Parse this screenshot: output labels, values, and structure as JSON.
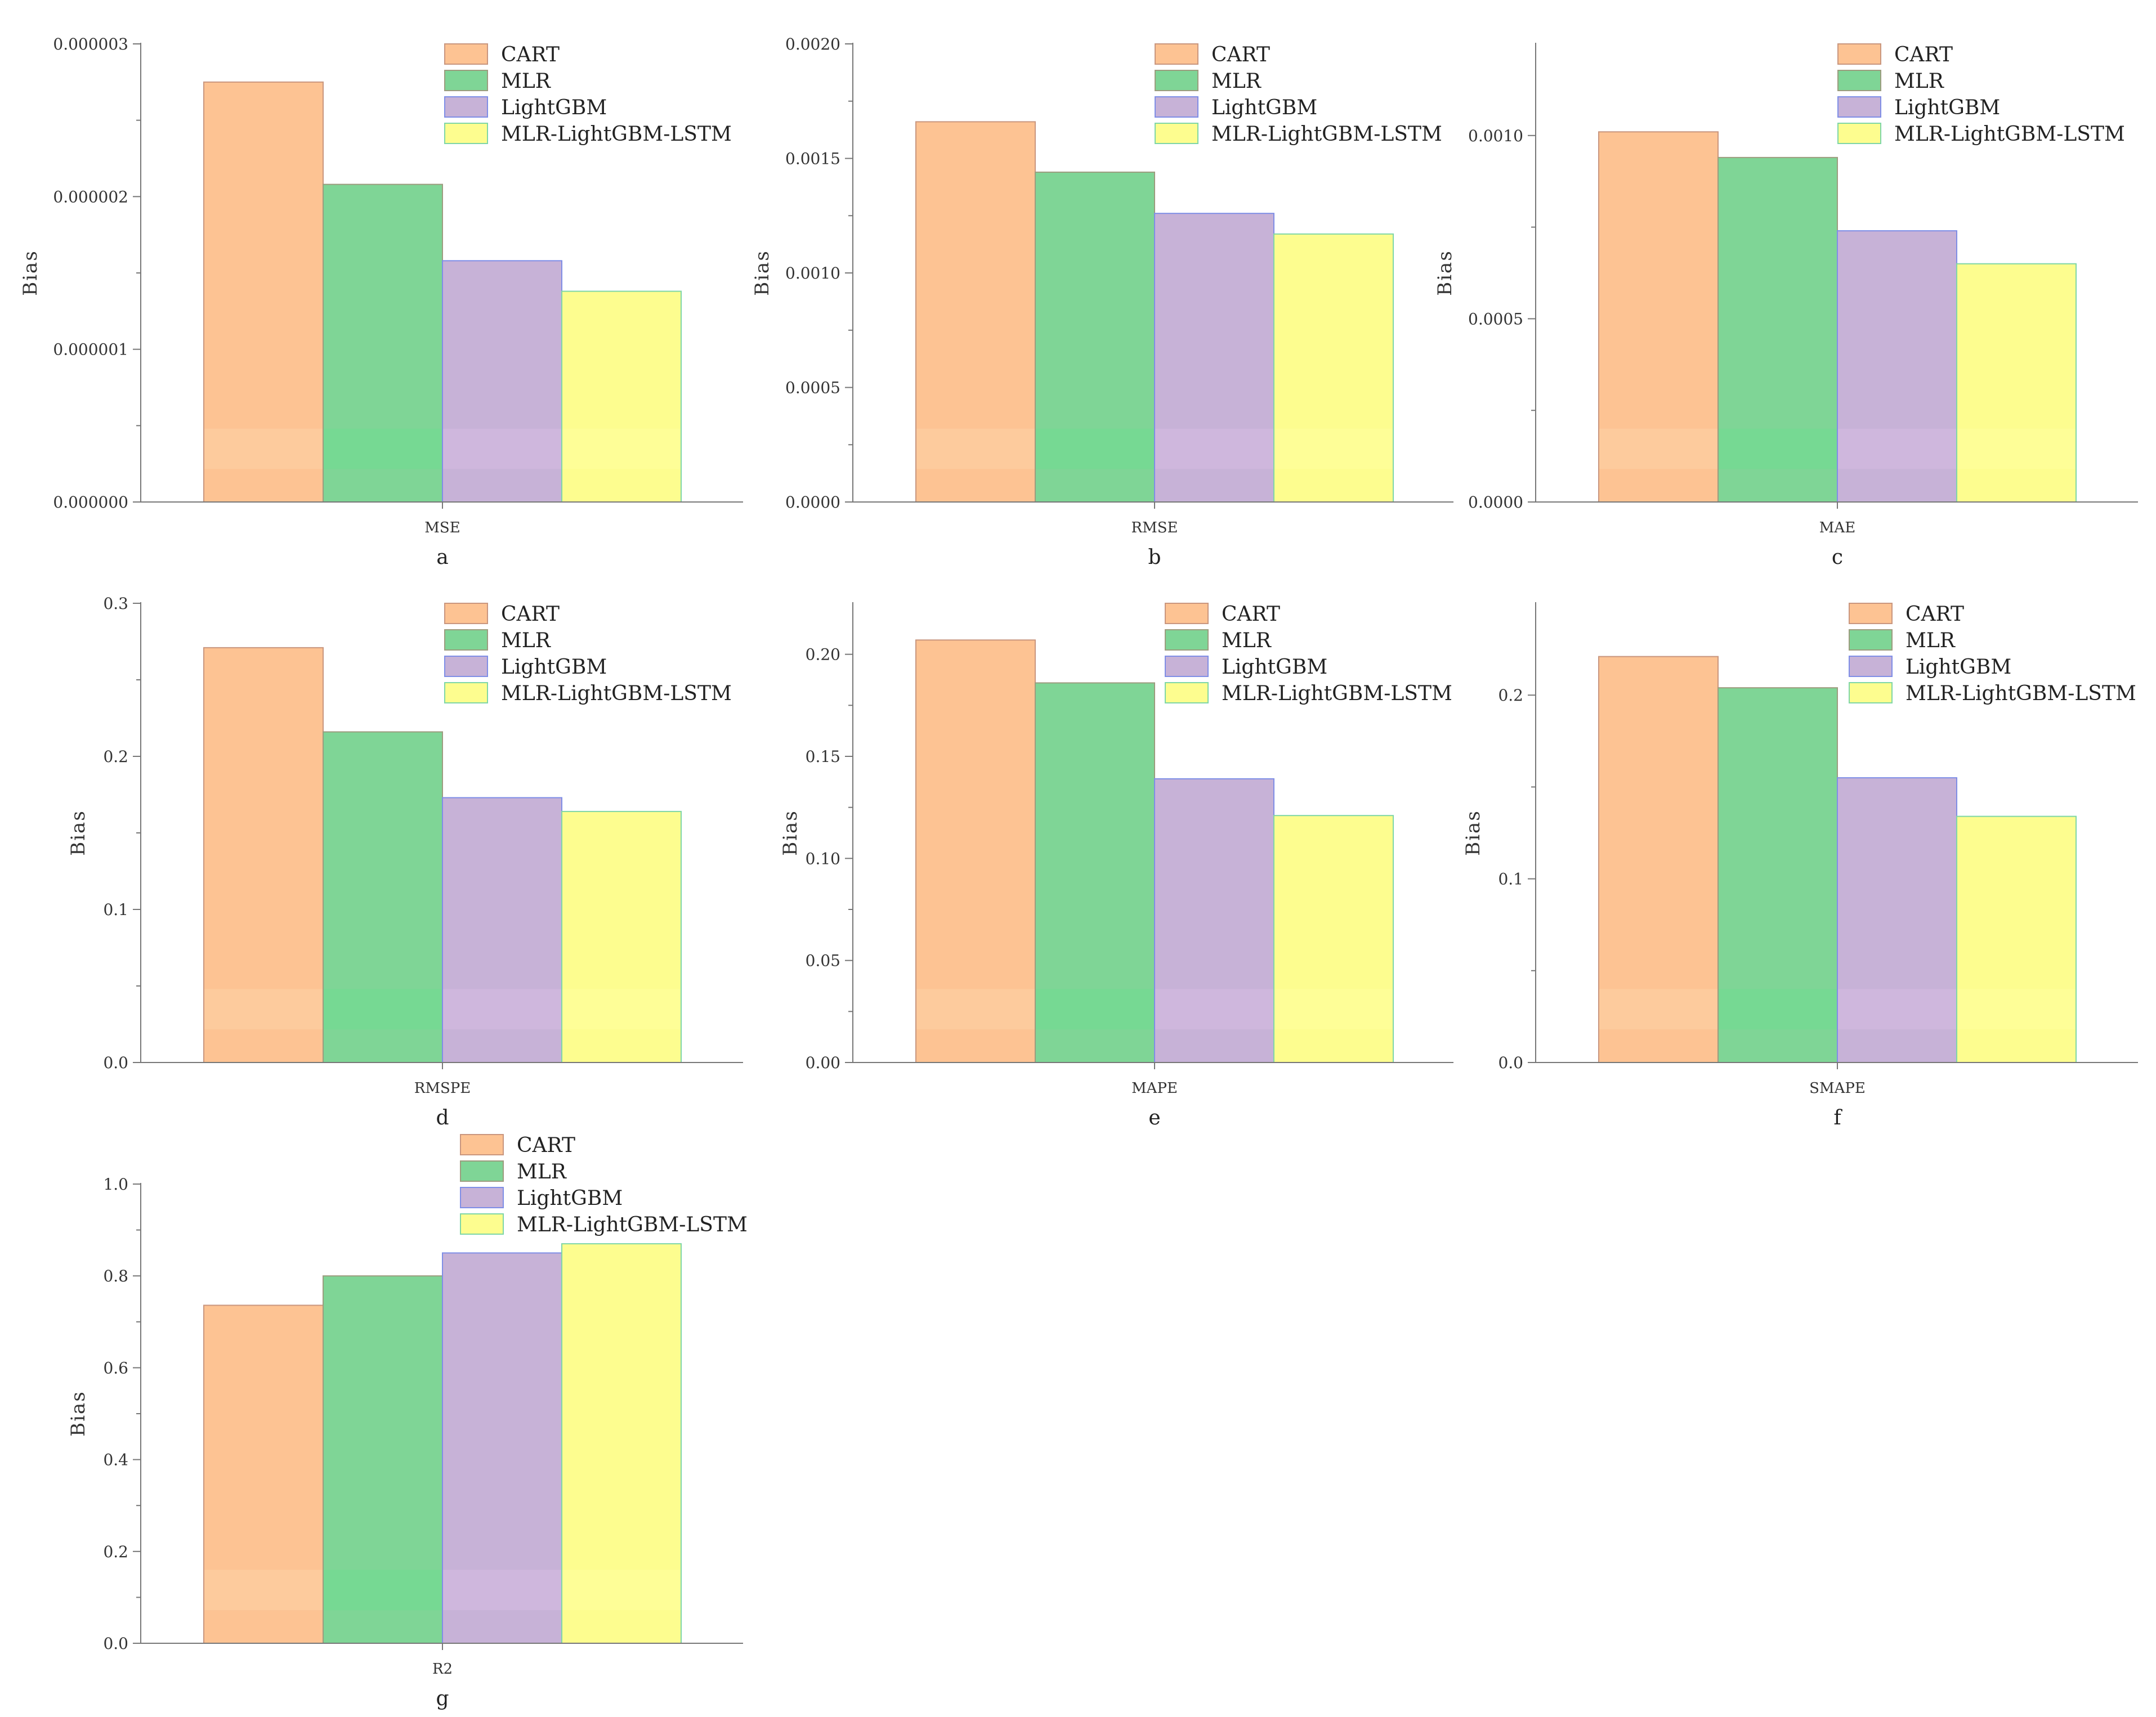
{
  "chart_data": [
    {
      "type": "bar",
      "panel_label": "a",
      "category": "MSE",
      "ylabel": "Bias",
      "yticks": [
        "0.000000",
        "0.000001",
        "0.000002",
        "0.000003"
      ],
      "ylim": [
        0,
        3e-06
      ],
      "series": [
        {
          "name": "CART",
          "value": 2.75e-06
        },
        {
          "name": "MLR",
          "value": 2.08e-06
        },
        {
          "name": "LightGBM",
          "value": 1.58e-06
        },
        {
          "name": "MLR-LightGBM-LSTM",
          "value": 1.38e-06
        }
      ]
    },
    {
      "type": "bar",
      "panel_label": "b",
      "category": "RMSE",
      "ylabel": "Bias",
      "yticks": [
        "0.0000",
        "0.0005",
        "0.0010",
        "0.0015",
        "0.0020"
      ],
      "ylim": [
        0,
        0.002
      ],
      "series": [
        {
          "name": "CART",
          "value": 0.00166
        },
        {
          "name": "MLR",
          "value": 0.00144
        },
        {
          "name": "LightGBM",
          "value": 0.00126
        },
        {
          "name": "MLR-LightGBM-LSTM",
          "value": 0.00117
        }
      ]
    },
    {
      "type": "bar",
      "panel_label": "c",
      "category": "MAE",
      "ylabel": "Bias",
      "yticks": [
        "0.0000",
        "0.0005",
        "0.0010"
      ],
      "ylim": [
        0,
        0.00125
      ],
      "series": [
        {
          "name": "CART",
          "value": 0.00101
        },
        {
          "name": "MLR",
          "value": 0.00094
        },
        {
          "name": "LightGBM",
          "value": 0.00074
        },
        {
          "name": "MLR-LightGBM-LSTM",
          "value": 0.00065
        }
      ]
    },
    {
      "type": "bar",
      "panel_label": "d",
      "category": "RMSPE",
      "ylabel": "Bias",
      "yticks": [
        "0.0",
        "0.1",
        "0.2",
        "0.3"
      ],
      "ylim": [
        0,
        0.3
      ],
      "series": [
        {
          "name": "CART",
          "value": 0.271
        },
        {
          "name": "MLR",
          "value": 0.216
        },
        {
          "name": "LightGBM",
          "value": 0.173
        },
        {
          "name": "MLR-LightGBM-LSTM",
          "value": 0.164
        }
      ]
    },
    {
      "type": "bar",
      "panel_label": "e",
      "category": "MAPE",
      "ylabel": "Bias",
      "yticks": [
        "0.00",
        "0.05",
        "0.10",
        "0.15",
        "0.20"
      ],
      "ylim": [
        0,
        0.225
      ],
      "series": [
        {
          "name": "CART",
          "value": 0.207
        },
        {
          "name": "MLR",
          "value": 0.186
        },
        {
          "name": "LightGBM",
          "value": 0.139
        },
        {
          "name": "MLR-LightGBM-LSTM",
          "value": 0.121
        }
      ]
    },
    {
      "type": "bar",
      "panel_label": "f",
      "category": "SMAPE",
      "ylabel": "Bias",
      "yticks": [
        "0.0",
        "0.1",
        "0.2"
      ],
      "ylim": [
        0,
        0.25
      ],
      "series": [
        {
          "name": "CART",
          "value": 0.221
        },
        {
          "name": "MLR",
          "value": 0.204
        },
        {
          "name": "LightGBM",
          "value": 0.155
        },
        {
          "name": "MLR-LightGBM-LSTM",
          "value": 0.134
        }
      ]
    },
    {
      "type": "bar",
      "panel_label": "g",
      "category": "R2",
      "ylabel": "Bias",
      "yticks": [
        "0.0",
        "0.2",
        "0.4",
        "0.6",
        "0.8",
        "1.0"
      ],
      "ylim": [
        0,
        1.0
      ],
      "series": [
        {
          "name": "CART",
          "value": 0.736
        },
        {
          "name": "MLR",
          "value": 0.8
        },
        {
          "name": "LightGBM",
          "value": 0.85
        },
        {
          "name": "MLR-LightGBM-LSTM",
          "value": 0.87
        }
      ]
    }
  ],
  "legend": {
    "items": [
      "CART",
      "MLR",
      "LightGBM",
      "MLR-LightGBM-LSTM"
    ]
  },
  "colors": {
    "fills": [
      "#fdc393",
      "#7fd596",
      "#c7b2d7",
      "#fdfd8f"
    ],
    "strokes": [
      "#c9967e",
      "#9c9c7e",
      "#7f8ee6",
      "#7fd6a6"
    ],
    "fill_highlights": [
      "#fdd2a6",
      "#6fdd92",
      "#d5bce1",
      "#ffff9f"
    ],
    "axis": "#777777"
  }
}
